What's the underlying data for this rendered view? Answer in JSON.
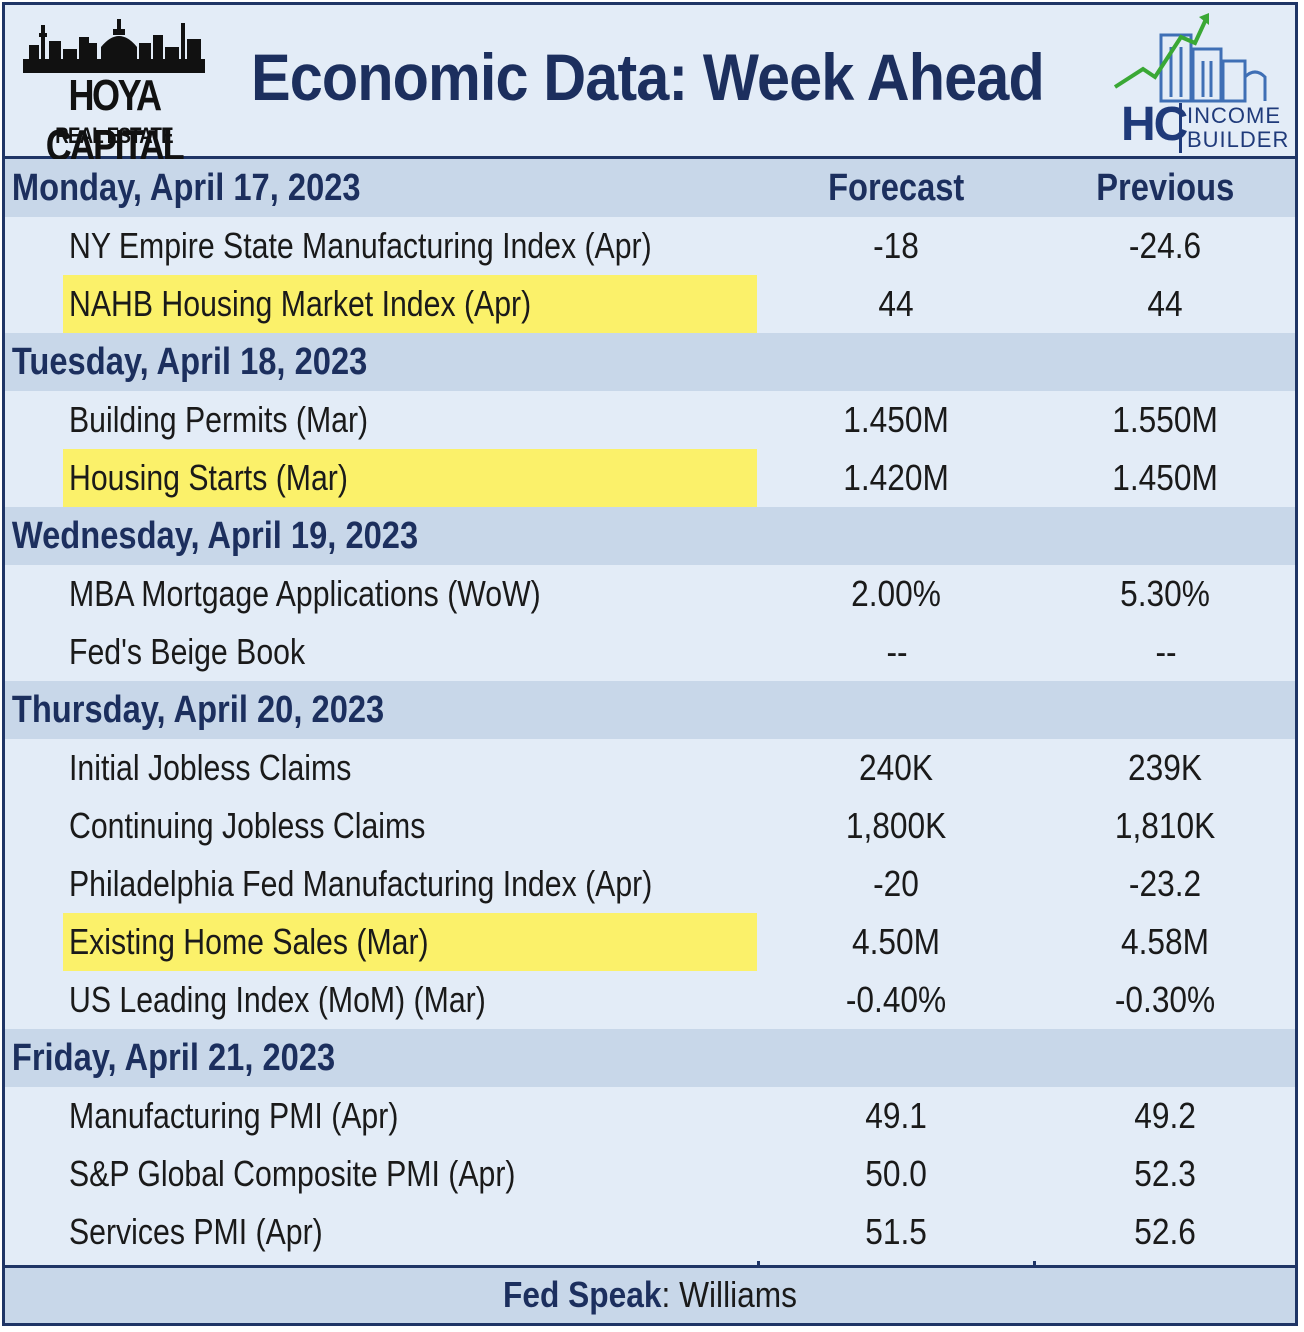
{
  "header": {
    "title": "Economic Data: Week Ahead",
    "left_logo": {
      "name": "HOYA CAPITAL",
      "sub": "REAL ESTATE"
    },
    "right_logo": {
      "letters": "HC",
      "line1": "INCOME",
      "line2": "BUILDER",
      "accent_green": "#3aa835",
      "accent_blue": "#3f6fb5"
    }
  },
  "columns": {
    "forecast": "Forecast",
    "previous": "Previous"
  },
  "rows": [
    {
      "type": "day",
      "label": "Monday, April 17, 2023",
      "forecast": "Forecast",
      "previous": "Previous"
    },
    {
      "type": "item",
      "label": "NY Empire State Manufacturing Index (Apr)",
      "forecast": "-18",
      "previous": "-24.6",
      "highlight": false
    },
    {
      "type": "item",
      "label": "NAHB Housing Market Index (Apr)",
      "forecast": "44",
      "previous": "44",
      "highlight": true
    },
    {
      "type": "day",
      "label": "Tuesday, April 18, 2023",
      "forecast": "",
      "previous": ""
    },
    {
      "type": "item",
      "label": "Building Permits (Mar)",
      "forecast": "1.450M",
      "previous": "1.550M",
      "highlight": false
    },
    {
      "type": "item",
      "label": "Housing Starts (Mar)",
      "forecast": "1.420M",
      "previous": "1.450M",
      "highlight": true
    },
    {
      "type": "day",
      "label": "Wednesday, April 19, 2023",
      "forecast": "",
      "previous": ""
    },
    {
      "type": "item",
      "label": "MBA Mortgage Applications (WoW)",
      "forecast": "2.00%",
      "previous": "5.30%",
      "highlight": false
    },
    {
      "type": "item",
      "label": "Fed's Beige Book",
      "forecast": "--",
      "previous": "--",
      "highlight": false
    },
    {
      "type": "day",
      "label": "Thursday, April 20, 2023",
      "forecast": "",
      "previous": ""
    },
    {
      "type": "item",
      "label": "Initial Jobless Claims",
      "forecast": "240K",
      "previous": "239K",
      "highlight": false
    },
    {
      "type": "item",
      "label": "Continuing Jobless Claims",
      "forecast": "1,800K",
      "previous": "1,810K",
      "highlight": false
    },
    {
      "type": "item",
      "label": "Philadelphia Fed Manufacturing Index (Apr)",
      "forecast": "-20",
      "previous": "-23.2",
      "highlight": false
    },
    {
      "type": "item",
      "label": "Existing Home Sales (Mar)",
      "forecast": "4.50M",
      "previous": "4.58M",
      "highlight": true
    },
    {
      "type": "item",
      "label": "US Leading Index (MoM) (Mar)",
      "forecast": "-0.40%",
      "previous": "-0.30%",
      "highlight": false
    },
    {
      "type": "day",
      "label": "Friday, April 21, 2023",
      "forecast": "",
      "previous": ""
    },
    {
      "type": "item",
      "label": "Manufacturing PMI (Apr)",
      "forecast": "49.1",
      "previous": "49.2",
      "highlight": false
    },
    {
      "type": "item",
      "label": "S&P Global Composite PMI (Apr)",
      "forecast": "50.0",
      "previous": "52.3",
      "highlight": false
    },
    {
      "type": "item",
      "label": "Services PMI (Apr)",
      "forecast": "51.5",
      "previous": "52.6",
      "highlight": false
    }
  ],
  "footer": {
    "label": "Fed Speak",
    "value": ": Williams"
  },
  "colors": {
    "navy": "#1c2f5e",
    "day_row": "#c8d7e9",
    "item_row": "#e3ecf7",
    "highlight": "#fbf16a"
  }
}
